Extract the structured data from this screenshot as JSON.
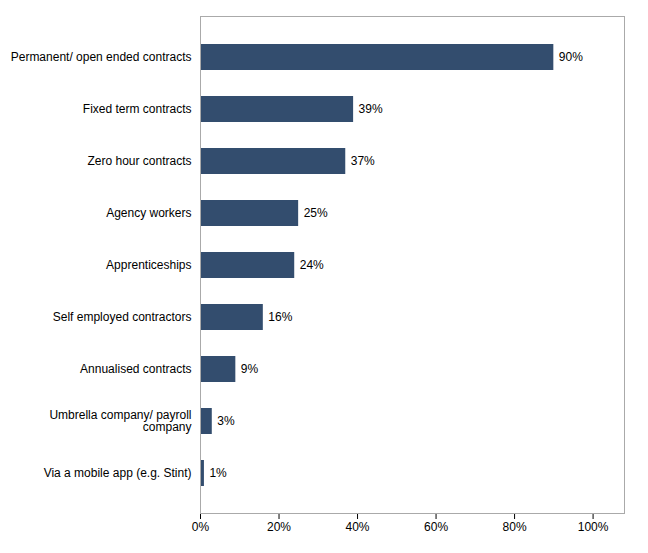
{
  "chart_data": {
    "type": "bar",
    "orientation": "horizontal",
    "categories": [
      "Via a mobile app (e.g. Stint)",
      "Umbrella company/ payroll\ncompany",
      "Annualised contracts",
      "Self employed contractors",
      "Apprenticeships",
      "Agency workers",
      "Zero hour contracts",
      "Fixed term contracts",
      "Permanent/ open ended contracts"
    ],
    "values": [
      1,
      3,
      9,
      16,
      24,
      25,
      37,
      39,
      90
    ],
    "value_labels": [
      "1%",
      "3%",
      "9%",
      "16%",
      "24%",
      "25%",
      "37%",
      "39%",
      "90%"
    ],
    "data_labels": true,
    "color": "#334d6e",
    "xlim": [
      0,
      108
    ],
    "xticks": [
      {
        "value": 0,
        "label": "0%"
      },
      {
        "value": 20,
        "label": "20%"
      },
      {
        "value": 40,
        "label": "40%"
      },
      {
        "value": 60,
        "label": "60%"
      },
      {
        "value": 80,
        "label": "80%"
      },
      {
        "value": 100,
        "label": "100%"
      }
    ],
    "grid": false
  }
}
